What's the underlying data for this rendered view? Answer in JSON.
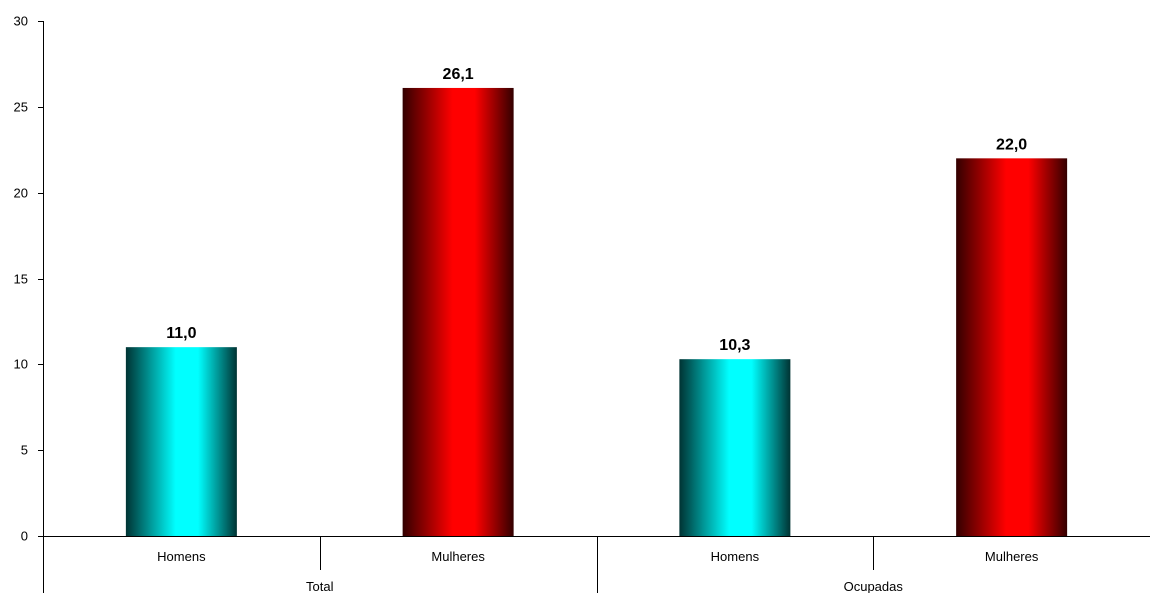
{
  "chart_data": {
    "type": "bar",
    "title": "",
    "xlabel": "",
    "ylabel": "",
    "ylim": [
      0,
      30
    ],
    "yticks": [
      0,
      5,
      10,
      15,
      20,
      25,
      30
    ],
    "grid": false,
    "legend": "none",
    "groups": [
      {
        "label": "Total",
        "categories": [
          "Homens",
          "Mulheres"
        ]
      },
      {
        "label": "Ocupadas",
        "categories": [
          "Homens",
          "Mulheres"
        ]
      }
    ],
    "bars": [
      {
        "group": "Total",
        "category": "Homens",
        "value": 11.0,
        "label": "11,0",
        "color": "cyan"
      },
      {
        "group": "Total",
        "category": "Mulheres",
        "value": 26.1,
        "label": "26,1",
        "color": "red"
      },
      {
        "group": "Ocupadas",
        "category": "Homens",
        "value": 10.3,
        "label": "10,3",
        "color": "cyan"
      },
      {
        "group": "Ocupadas",
        "category": "Mulheres",
        "value": 22.0,
        "label": "22,0",
        "color": "red"
      }
    ],
    "colors": {
      "cyan_light": "#00FFFF",
      "cyan_dark": "#003333",
      "red_light": "#FF0000",
      "red_dark": "#330000",
      "axis": "#000000"
    }
  }
}
